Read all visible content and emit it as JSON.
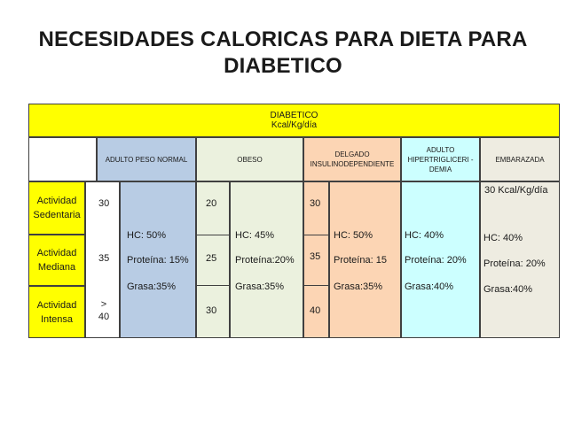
{
  "title": "NECESIDADES CALORICAS PARA DIETA PARA DIABETICO",
  "banner": {
    "line1": "DIABETICO",
    "line2": "Kcal/Kg/día"
  },
  "columns": {
    "adulto_peso_normal": "ADULTO PESO NORMAL",
    "obeso": "OBESO",
    "delgado": "DELGADO INSULINODEPENDIENTE",
    "hipertrigliceridemia": "ADULTO HIPERTRIGLICERI - DEMIA",
    "embarazada": "EMBARAZADA"
  },
  "rows": [
    {
      "label": "Actividad Sedentaria"
    },
    {
      "label": "Actividad Mediana"
    },
    {
      "label": "Actividad Intensa"
    }
  ],
  "adulto_peso_normal": {
    "kcal": [
      "30",
      "35",
      "> 40"
    ],
    "macros": [
      "HC: 50%",
      "Proteína: 15%",
      "Grasa:35%"
    ]
  },
  "obeso": {
    "kcal": [
      "20",
      "25",
      "30"
    ],
    "macros": [
      "HC: 45%",
      "Proteína:20%",
      "Grasa:35%"
    ]
  },
  "delgado": {
    "kcal": [
      "30",
      "35",
      "40"
    ],
    "macros": [
      "HC: 50%",
      "Proteína: 15",
      "Grasa:35%"
    ]
  },
  "hipertrigliceridemia": {
    "macros": [
      "HC: 40%",
      "Proteína: 20%",
      "Grasa:40%"
    ]
  },
  "embarazada": {
    "kcal": "30 Kcal/Kg/día",
    "macros": [
      "HC: 40%",
      "Proteína: 20%",
      "Grasa:40%"
    ]
  },
  "colors": {
    "banner": "#ffff00",
    "activity": "#ffff00",
    "adulto_peso_normal": "#b8cce4",
    "obeso": "#ebf1de",
    "delgado": "#fcd5b4",
    "hipertrigliceridemia": "#ccffff",
    "embarazada": "#eeece1"
  }
}
